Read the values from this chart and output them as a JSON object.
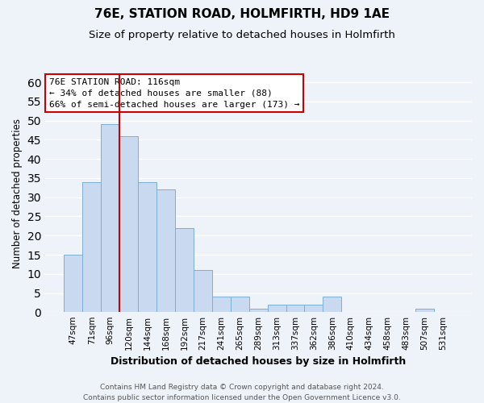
{
  "title": "76E, STATION ROAD, HOLMFIRTH, HD9 1AE",
  "subtitle": "Size of property relative to detached houses in Holmfirth",
  "xlabel": "Distribution of detached houses by size in Holmfirth",
  "ylabel": "Number of detached properties",
  "bar_labels": [
    "47sqm",
    "71sqm",
    "96sqm",
    "120sqm",
    "144sqm",
    "168sqm",
    "192sqm",
    "217sqm",
    "241sqm",
    "265sqm",
    "289sqm",
    "313sqm",
    "337sqm",
    "362sqm",
    "386sqm",
    "410sqm",
    "434sqm",
    "458sqm",
    "483sqm",
    "507sqm",
    "531sqm"
  ],
  "bar_values": [
    15,
    34,
    49,
    46,
    34,
    32,
    22,
    11,
    4,
    4,
    1,
    2,
    2,
    2,
    4,
    0,
    0,
    0,
    0,
    1,
    0
  ],
  "bar_color": "#c9d9f0",
  "bar_edge_color": "#7bafd4",
  "vline_x_index": 3,
  "vline_color": "#cc0000",
  "ylim": [
    0,
    62
  ],
  "yticks": [
    0,
    5,
    10,
    15,
    20,
    25,
    30,
    35,
    40,
    45,
    50,
    55,
    60
  ],
  "annotation_title": "76E STATION ROAD: 116sqm",
  "annotation_line1": "← 34% of detached houses are smaller (88)",
  "annotation_line2": "66% of semi-detached houses are larger (173) →",
  "footer_line1": "Contains HM Land Registry data © Crown copyright and database right 2024.",
  "footer_line2": "Contains public sector information licensed under the Open Government Licence v3.0.",
  "background_color": "#eef2f9",
  "grid_color": "#ffffff",
  "title_fontsize": 11,
  "subtitle_fontsize": 9.5,
  "ylabel_fontsize": 8.5,
  "xlabel_fontsize": 9,
  "tick_fontsize": 7.5,
  "ann_fontsize": 8,
  "footer_fontsize": 6.5
}
